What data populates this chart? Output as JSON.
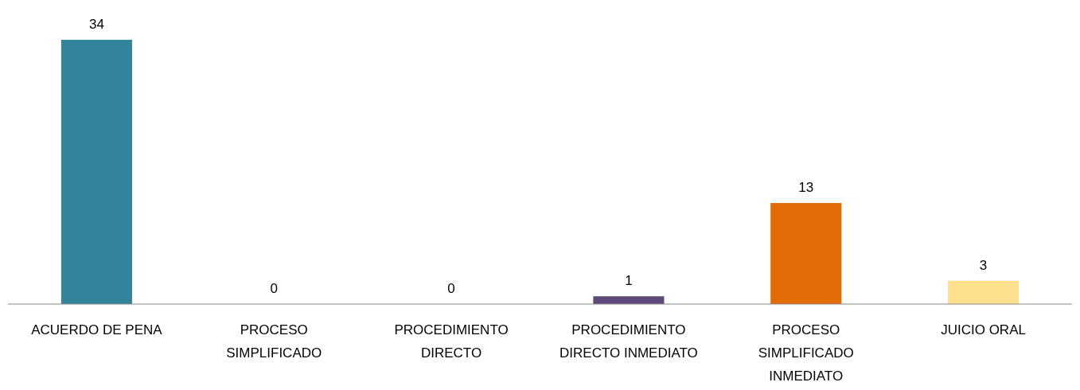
{
  "chart_data": {
    "type": "bar",
    "categories": [
      "ACUERDO DE PENA",
      "PROCESO SIMPLIFICADO",
      "PROCEDIMIENTO DIRECTO",
      "PROCEDIMIENTO DIRECTO INMEDIATO",
      "PROCESO SIMPLIFICADO INMEDIATO",
      "JUICIO ORAL"
    ],
    "values": [
      34,
      0,
      0,
      1,
      13,
      3
    ],
    "colors": [
      "#31849b",
      "#31849b",
      "#31849b",
      "#604a7b",
      "#e36c09",
      "#ffe08f"
    ],
    "data_labels": true
  }
}
